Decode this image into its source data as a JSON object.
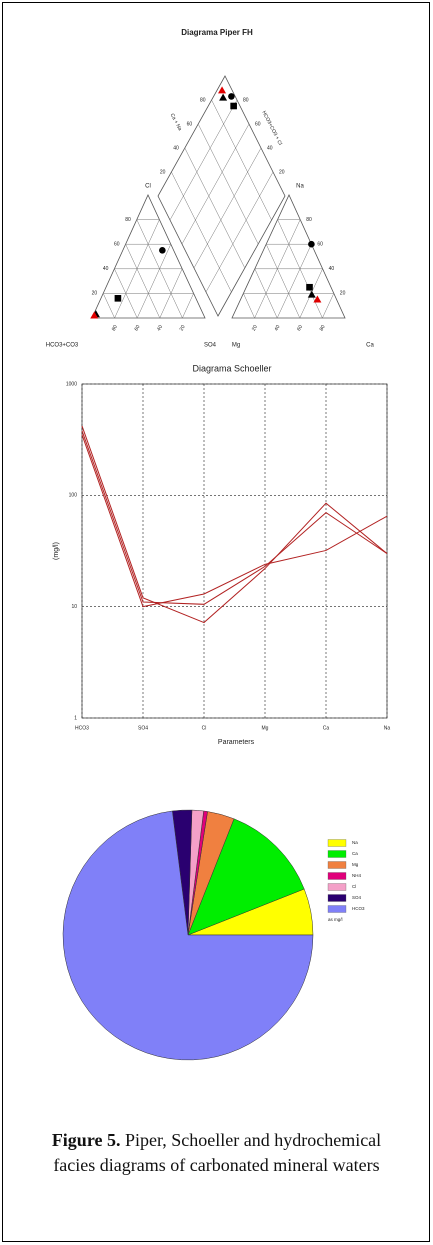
{
  "chart_data": [
    {
      "type": "piper",
      "title": "Diagrama Piper FH",
      "anion_labels": {
        "top": "Cl",
        "left": "HCO3+CO3",
        "right": "SO4"
      },
      "cation_labels": {
        "top": "Na",
        "left": "Mg",
        "right": "Ca"
      },
      "diamond_labels": {
        "left": "Ca + Na",
        "right": "HCO3+CO3 + Cl"
      },
      "ticks": [
        20,
        40,
        60,
        80
      ],
      "samples": [
        {
          "marker": "circle",
          "color": "#000000",
          "anion": {
            "cl": 55,
            "so4": 35
          },
          "cation": {
            "na": 60,
            "ca": 40
          },
          "diamond": {
            "right": 97,
            "left": 86
          }
        },
        {
          "marker": "square",
          "color": "#000000",
          "anion": {
            "cl": 16,
            "so4": 15
          },
          "cation": {
            "na": 25,
            "ca": 56
          },
          "diamond": {
            "right": 95,
            "left": 80
          }
        },
        {
          "marker": "triangle",
          "color": "#000000",
          "anion": {
            "cl": 3,
            "so4": 2
          },
          "cation": {
            "na": 19,
            "ca": 61
          },
          "diamond": {
            "right": 90,
            "left": 92
          }
        },
        {
          "marker": "triangle",
          "color": "#e00000",
          "anion": {
            "cl": 2,
            "so4": 1
          },
          "cation": {
            "na": 15,
            "ca": 68
          },
          "diamond": {
            "right": 92,
            "left": 96
          }
        }
      ]
    },
    {
      "type": "line",
      "title": "Diagrama Schoeller",
      "x_label": "Parameters",
      "y_label": "(mg/l)",
      "categories": [
        "HCO3",
        "SO4",
        "Cl",
        "Mg",
        "Ca",
        "Na"
      ],
      "log_scale": true,
      "grid": true,
      "ylim": [
        1,
        1000
      ],
      "yticks": [
        1,
        10,
        100,
        1000
      ],
      "series": [
        {
          "color": "#b22222",
          "values": [
            420,
            12,
            7.2,
            22,
            85,
            30
          ]
        },
        {
          "color": "#b22222",
          "values": [
            380,
            11,
            10.5,
            23,
            70,
            30
          ]
        },
        {
          "color": "#b22222",
          "values": [
            350,
            10,
            13,
            24,
            32,
            65
          ]
        }
      ]
    },
    {
      "type": "pie",
      "categories": [
        "Na",
        "Ca",
        "Mg",
        "NH4",
        "Cl",
        "SO4",
        "HCO3"
      ],
      "values": [
        6,
        13,
        3.5,
        0.5,
        1.5,
        2.5,
        73
      ],
      "colors": [
        "#ffff00",
        "#00ee00",
        "#f08040",
        "#e0007a",
        "#f4a0c8",
        "#2a0070",
        "#8080f8"
      ],
      "unit_note": "as mg/l"
    }
  ],
  "caption": {
    "label": "Figure 5.",
    "text": "Piper, Schoeller and hydrochemical facies diagrams of carbonated mineral waters"
  }
}
